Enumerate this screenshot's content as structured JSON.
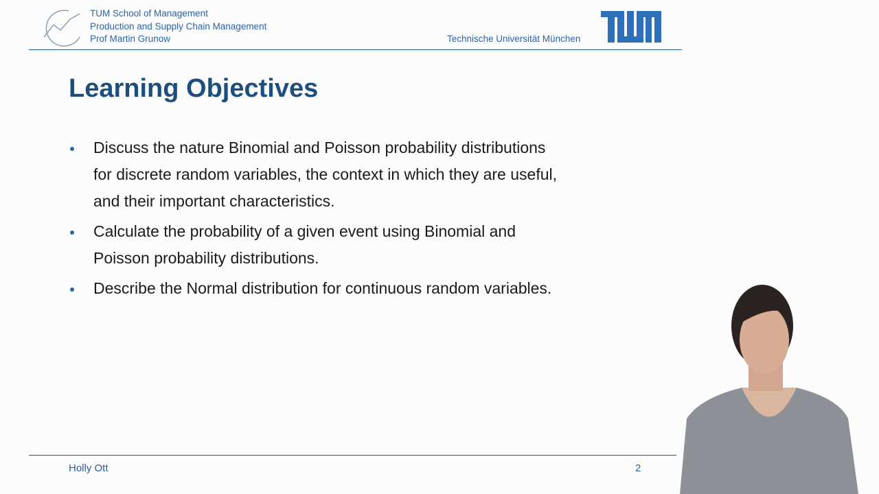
{
  "header": {
    "institution_lines": [
      "TUM School of Management",
      "Production and Supply Chain Management",
      "Prof Martin Grunow"
    ],
    "university": "Technische Universität München"
  },
  "slide": {
    "title": "Learning Objectives",
    "bullets": [
      [
        "Discuss the nature Binomial and Poisson probability distributions",
        "for discrete random variables, the context in which they are useful,",
        "and their important characteristics."
      ],
      [
        "Calculate the probability of a given event using Binomial and",
        "Poisson probability distributions."
      ],
      [
        "Describe the Normal distribution for continuous random variables."
      ]
    ]
  },
  "footer": {
    "author": "Holly Ott",
    "page_number": 2
  }
}
